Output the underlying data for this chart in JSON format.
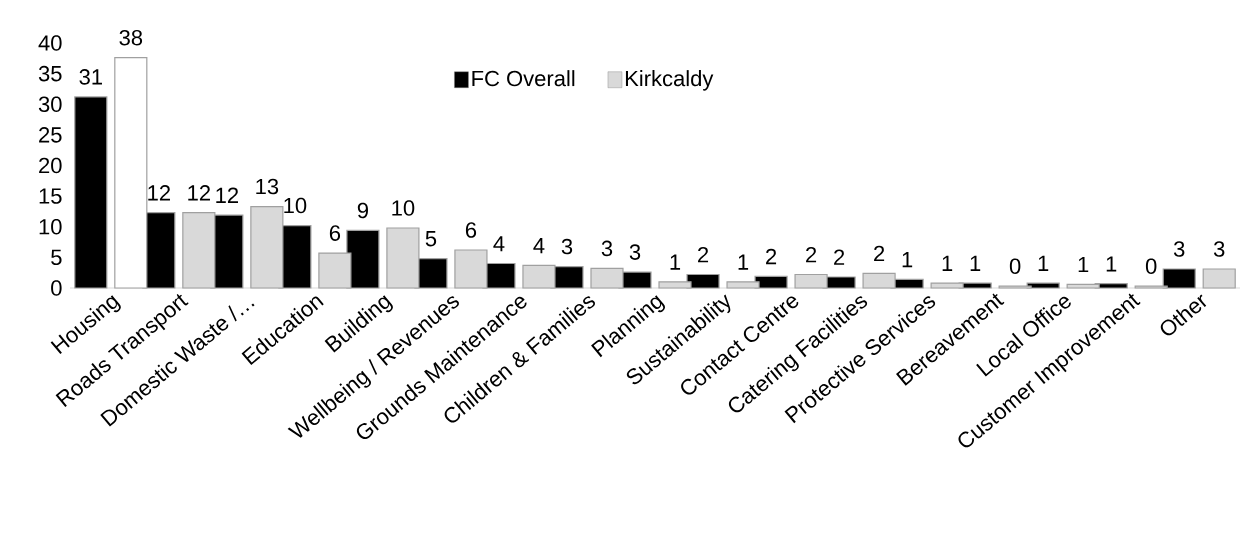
{
  "chart_data": {
    "type": "bar",
    "categories": [
      "Housing",
      "Roads Transport",
      "Domestic Waste /…",
      "Education",
      "Building",
      "Wellbeing / Revenues",
      "Grounds Maintenance",
      "Children & Families",
      "Planning",
      "Sustainability",
      "Contact Centre",
      "Catering Facilities",
      "Protective Services",
      "Bereavement",
      "Local Office",
      "Customer Improvement",
      "Other"
    ],
    "series": [
      {
        "name": "FC Overall",
        "color": "#000000",
        "values": [
          31.2,
          12.3,
          11.9,
          10.2,
          9.4,
          4.8,
          4.0,
          3.5,
          2.6,
          2.2,
          1.9,
          1.8,
          1.4,
          0.8,
          0.8,
          0.7,
          3.1
        ],
        "value_labels": [
          "31",
          "12",
          "12",
          "10",
          "9",
          "5",
          "4",
          "3",
          "3",
          "2",
          "2",
          "2",
          "1",
          "1",
          "1",
          "1",
          "3"
        ]
      },
      {
        "name": "Kirkcaldy",
        "color": "#d9d9d9",
        "colors": [
          "#ffffff",
          "#d9d9d9",
          "#d9d9d9",
          "#d9d9d9",
          "#d9d9d9",
          "#d9d9d9",
          "#d9d9d9",
          "#d9d9d9",
          "#d9d9d9",
          "#d9d9d9",
          "#d9d9d9",
          "#d9d9d9",
          "#d9d9d9",
          "#d9d9d9",
          "#d9d9d9",
          "#d9d9d9",
          "#d9d9d9"
        ],
        "values": [
          37.6,
          12.3,
          13.3,
          5.7,
          9.8,
          6.2,
          3.7,
          3.2,
          1.0,
          1.0,
          2.2,
          2.4,
          0.8,
          0.3,
          0.6,
          0.3,
          3.1
        ],
        "value_labels": [
          "38",
          "12",
          "13",
          "6",
          "10",
          "6",
          "4",
          "3",
          "1",
          "1",
          "2",
          "2",
          "1",
          "0",
          "1",
          "0",
          "3"
        ]
      }
    ],
    "ylim": [
      0,
      40
    ],
    "yticks": [
      0,
      5,
      10,
      15,
      20,
      25,
      30,
      35,
      40
    ],
    "legend": "top",
    "grid": false
  }
}
